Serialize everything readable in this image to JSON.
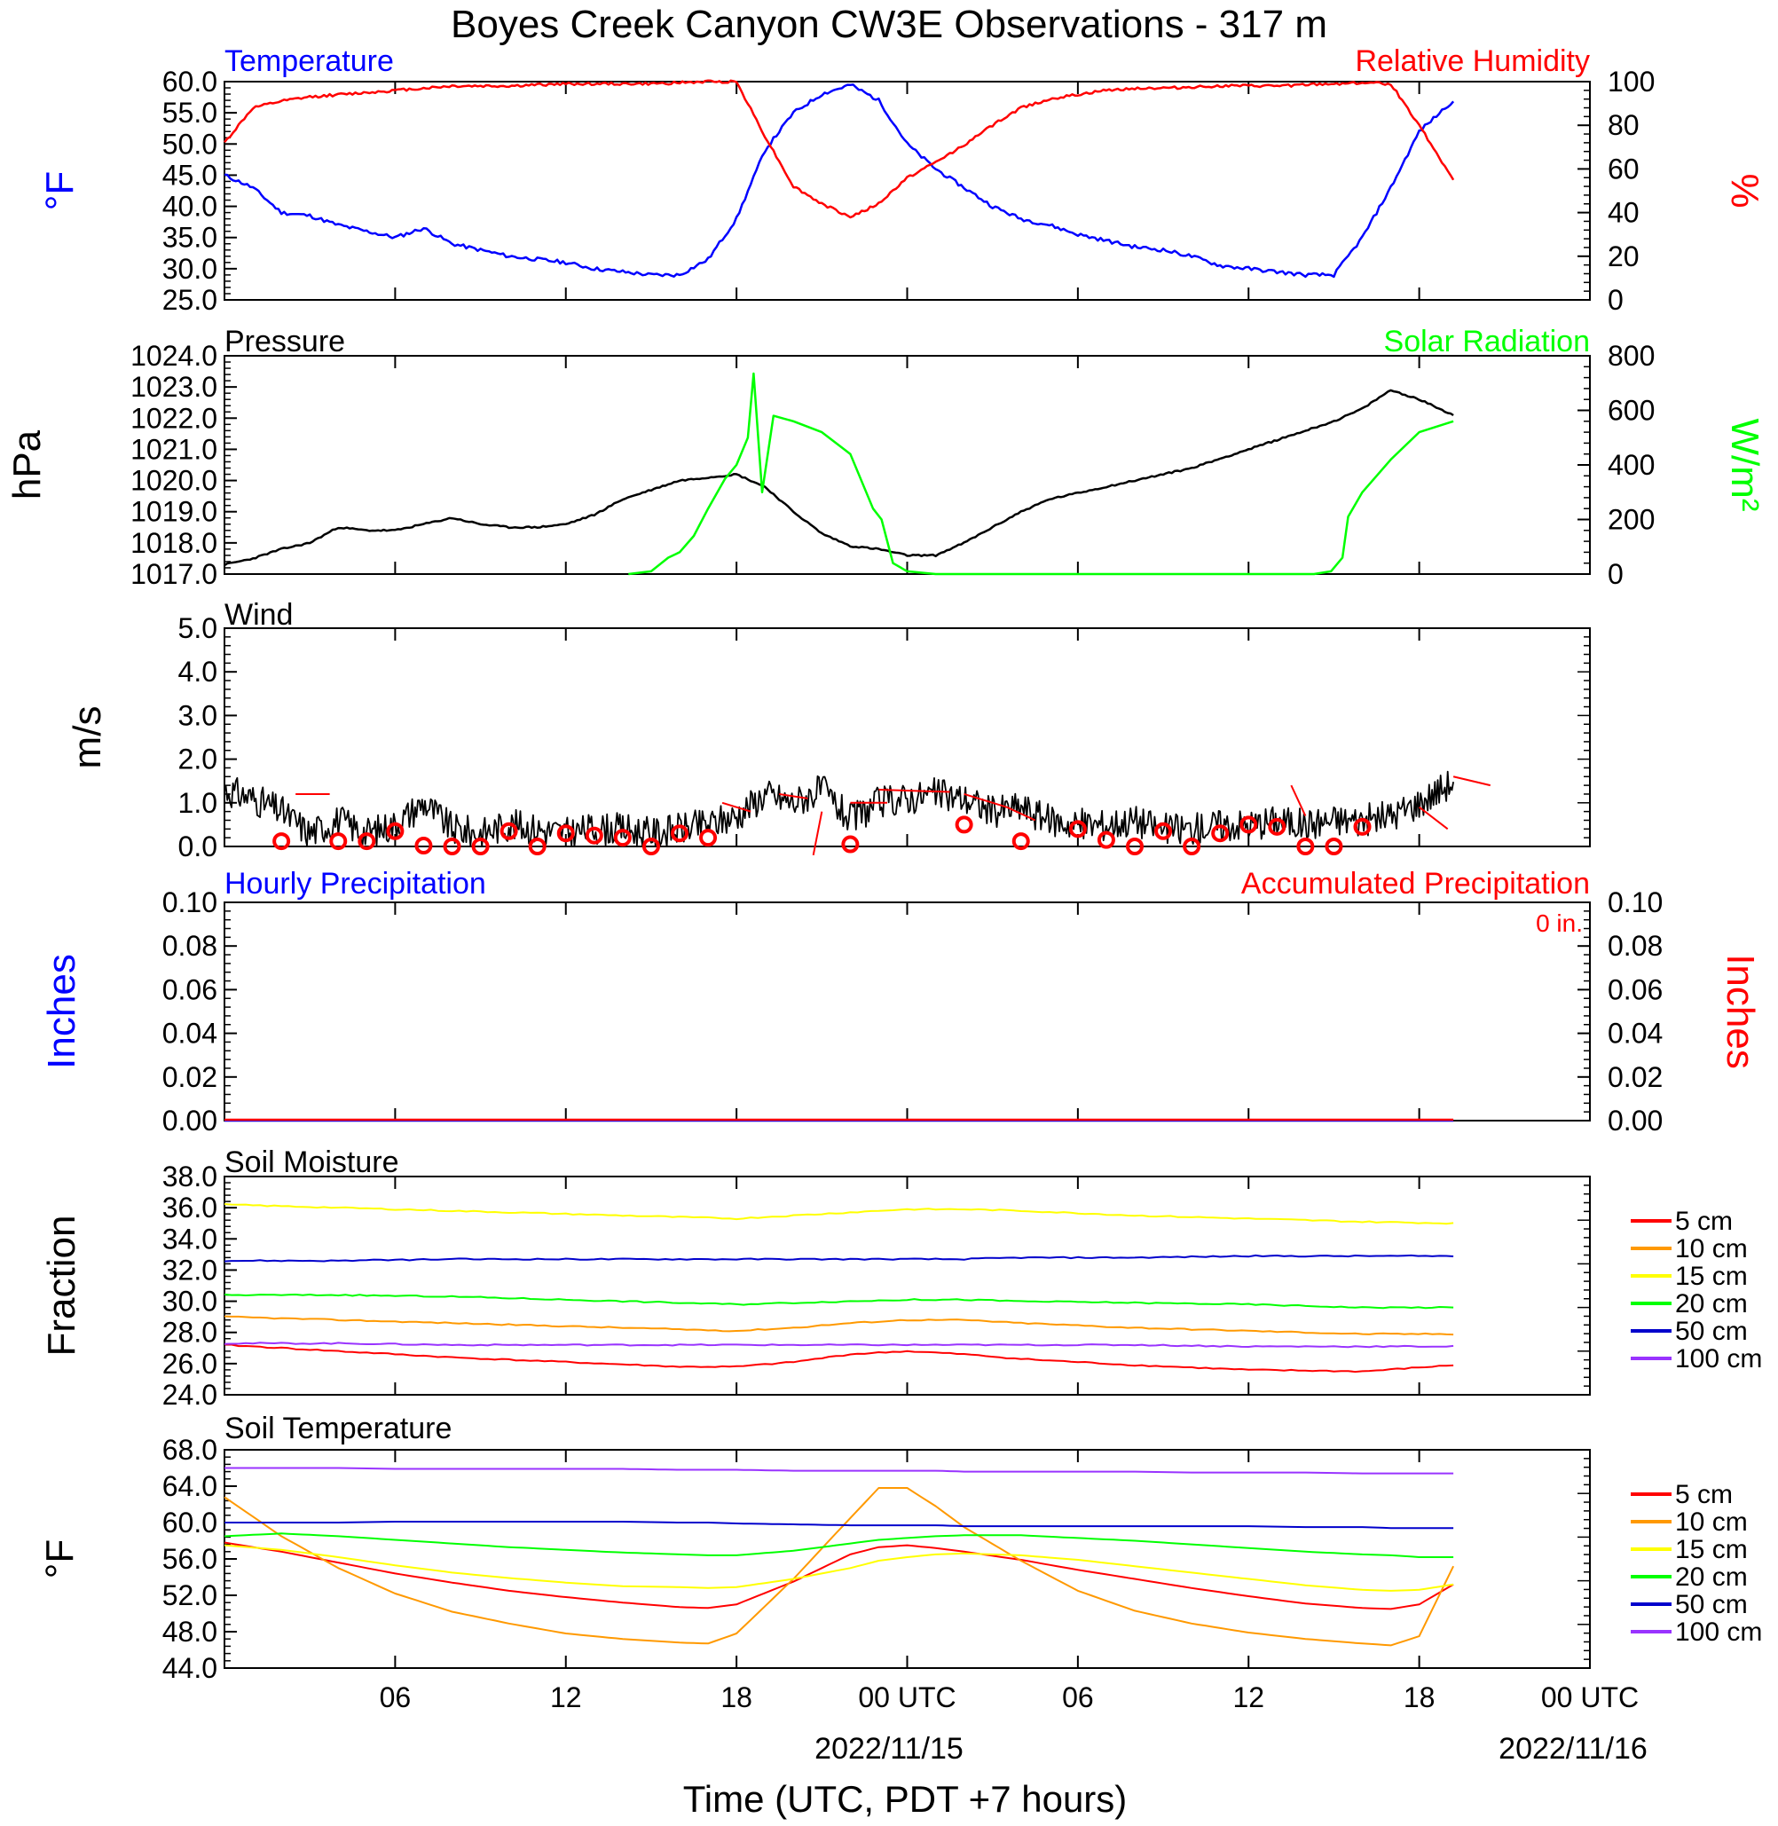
{
  "title": "Boyes Creek Canyon CW3E Observations - 317 m",
  "x_axis": {
    "label": "Time (UTC, PDT +7 hours)",
    "tick_labels": [
      "06",
      "12",
      "18",
      "00 UTC",
      "06",
      "12",
      "18",
      "00 UTC"
    ],
    "date_labels": [
      "2022/11/15",
      "2022/11/16"
    ],
    "range_hours": [
      0,
      48
    ],
    "data_end_hours": 43.2
  },
  "colors": {
    "blue": "#0000ff",
    "red": "#ff0000",
    "green": "#00ff00",
    "black": "#000000",
    "orange": "#ff9900",
    "yellow": "#ffff00",
    "purple": "#9933ff",
    "darkblue": "#0000cc"
  },
  "panels": {
    "temp": {
      "left_title": "Temperature",
      "right_title": "Relative Humidity",
      "left_unit": "°F",
      "right_unit": "%"
    },
    "pres": {
      "left_title": "Pressure",
      "right_title": "Solar Radiation",
      "left_unit": "hPa",
      "right_unit": "W/m²"
    },
    "wind": {
      "left_title": "Wind",
      "left_unit": "m/s"
    },
    "precip": {
      "left_title": "Hourly Precipitation",
      "right_title": "Accumulated Precipitation",
      "left_unit": "Inches",
      "right_unit": "Inches",
      "accum_note": "0 in."
    },
    "soilm": {
      "left_title": "Soil Moisture",
      "left_unit": "Fraction"
    },
    "soilt": {
      "left_title": "Soil Temperature",
      "left_unit": "°F"
    }
  },
  "legend_depths": [
    "5 cm",
    "10 cm",
    "15 cm",
    "20 cm",
    "50 cm",
    "100 cm"
  ],
  "chart_data": [
    {
      "type": "line",
      "title": "Temperature / Relative Humidity",
      "x_hours": [
        0,
        1,
        2,
        3,
        4,
        5,
        6,
        7,
        8,
        9,
        10,
        11,
        12,
        13,
        14,
        15,
        16,
        17,
        18,
        19,
        20,
        21,
        22,
        23,
        24,
        25,
        26,
        27,
        28,
        29,
        30,
        31,
        32,
        33,
        34,
        35,
        36,
        37,
        38,
        39,
        40,
        41,
        42,
        43.2
      ],
      "ylim_left": [
        25,
        60
      ],
      "ylim_right": [
        0,
        100
      ],
      "left_ticks": [
        "25.0",
        "30.0",
        "35.0",
        "40.0",
        "45.0",
        "50.0",
        "55.0",
        "60.0"
      ],
      "right_ticks": [
        "0",
        "20",
        "40",
        "60",
        "80",
        "100"
      ],
      "series": [
        {
          "name": "Temperature",
          "axis": "left",
          "color": "#0000ff",
          "values": [
            45,
            43,
            39,
            38.5,
            37,
            36,
            35,
            36.5,
            34,
            33,
            32,
            31.5,
            31,
            30,
            29.5,
            29,
            29,
            31.5,
            38,
            49,
            55,
            58,
            59.5,
            57,
            50,
            46,
            43,
            40,
            38,
            37,
            35.5,
            34.5,
            33.5,
            33,
            32,
            30.5,
            30,
            29.5,
            29,
            29,
            35,
            43,
            52,
            57
          ]
        },
        {
          "name": "Relative Humidity",
          "axis": "right",
          "color": "#ff0000",
          "values": [
            72,
            88,
            91,
            93,
            94,
            95,
            96,
            97,
            98,
            98,
            98,
            98.5,
            99,
            99,
            99,
            99,
            99.5,
            100,
            100,
            75,
            52,
            44,
            38,
            44,
            56,
            63,
            71,
            80,
            88,
            92,
            94,
            96,
            97,
            97,
            97.5,
            98,
            98,
            98,
            98.5,
            99,
            99.5,
            99,
            80,
            55
          ]
        }
      ]
    },
    {
      "type": "line",
      "title": "Pressure / Solar Radiation",
      "ylim_left": [
        1017,
        1024
      ],
      "ylim_right": [
        0,
        800
      ],
      "left_ticks": [
        "1017.0",
        "1018.0",
        "1019.0",
        "1020.0",
        "1021.0",
        "1022.0",
        "1023.0",
        "1024.0"
      ],
      "right_ticks": [
        "0",
        "200",
        "400",
        "600",
        "800"
      ],
      "series": [
        {
          "name": "Pressure",
          "axis": "left",
          "color": "#000000",
          "x_hours": [
            0,
            1,
            2,
            3,
            4,
            5,
            6,
            7,
            8,
            9,
            10,
            11,
            12,
            13,
            14,
            15,
            16,
            17,
            18,
            19,
            20,
            21,
            22,
            23,
            24,
            25,
            26,
            27,
            28,
            29,
            30,
            31,
            32,
            33,
            34,
            35,
            36,
            37,
            38,
            39,
            40,
            41,
            42,
            43.2
          ],
          "values": [
            1017.3,
            1017.5,
            1017.8,
            1018.0,
            1018.5,
            1018.4,
            1018.4,
            1018.6,
            1018.8,
            1018.6,
            1018.5,
            1018.5,
            1018.6,
            1018.9,
            1019.4,
            1019.7,
            1020.0,
            1020.1,
            1020.2,
            1019.8,
            1019.0,
            1018.3,
            1017.9,
            1017.8,
            1017.6,
            1017.6,
            1018.0,
            1018.5,
            1019.0,
            1019.4,
            1019.6,
            1019.8,
            1020.0,
            1020.2,
            1020.4,
            1020.7,
            1021.0,
            1021.3,
            1021.6,
            1021.9,
            1022.3,
            1022.9,
            1022.6,
            1022.1
          ]
        },
        {
          "name": "Solar Radiation",
          "axis": "right",
          "color": "#00ff00",
          "x_hours": [
            14.2,
            15,
            15.6,
            16,
            16.5,
            17,
            17.6,
            18,
            18.4,
            18.6,
            18.9,
            19.3,
            20,
            21,
            22,
            22.8,
            23.1,
            23.5,
            24,
            25,
            33,
            38.3,
            38.9,
            39.3,
            39.5,
            40,
            41,
            42,
            43.2
          ],
          "values": [
            0,
            10,
            60,
            80,
            140,
            240,
            350,
            400,
            500,
            735,
            300,
            580,
            560,
            520,
            440,
            240,
            200,
            40,
            10,
            0,
            0,
            0,
            10,
            60,
            210,
            300,
            420,
            520,
            560
          ]
        }
      ]
    },
    {
      "type": "line",
      "title": "Wind",
      "x_hours": [
        0,
        1,
        2,
        3,
        4,
        5,
        6,
        7,
        8,
        9,
        10,
        11,
        12,
        13,
        14,
        15,
        16,
        17,
        18,
        19,
        20,
        21,
        22,
        23,
        24,
        25,
        26,
        27,
        28,
        29,
        30,
        31,
        32,
        33,
        34,
        35,
        36,
        37,
        38,
        39,
        40,
        41,
        42,
        43.2
      ],
      "ylim": [
        0,
        5
      ],
      "y_ticks": [
        "0.0",
        "1.0",
        "2.0",
        "3.0",
        "4.0",
        "5.0"
      ],
      "series": [
        {
          "name": "Wind",
          "color": "#000000",
          "values": [
            1.3,
            1.1,
            0.8,
            0.3,
            0.6,
            0.3,
            0.5,
            1.0,
            0.4,
            0.3,
            0.5,
            0.4,
            0.3,
            0.4,
            0.4,
            0.3,
            0.4,
            0.5,
            0.7,
            1.2,
            1.0,
            1.3,
            0.6,
            1.0,
            1.1,
            1.2,
            1.1,
            0.8,
            0.9,
            0.6,
            0.5,
            0.5,
            0.6,
            0.4,
            0.4,
            0.5,
            0.5,
            0.6,
            0.5,
            0.6,
            0.6,
            0.7,
            1.0,
            1.5
          ]
        }
      ],
      "hourly_markers_x": [
        2,
        4,
        5,
        6,
        7,
        8,
        9,
        10,
        11,
        12,
        13,
        14,
        15,
        16,
        17,
        22,
        26,
        28,
        30,
        31,
        32,
        33,
        34,
        35,
        36,
        37,
        38,
        39,
        40
      ],
      "hourly_markers_speed": [
        0.12,
        0.12,
        0.12,
        0.35,
        0.02,
        0.0,
        0.0,
        0.35,
        0.0,
        0.3,
        0.25,
        0.2,
        0.0,
        0.3,
        0.2,
        0.05,
        0.5,
        0.12,
        0.4,
        0.15,
        0.0,
        0.35,
        0.0,
        0.3,
        0.5,
        0.45,
        0.0,
        0.0,
        0.45
      ],
      "barbs": [
        {
          "x": 2.5,
          "y": 1.2,
          "dx": 1.2,
          "dy": 0.0
        },
        {
          "x": 17.5,
          "y": 1.0,
          "dx": 1.0,
          "dy": -0.2
        },
        {
          "x": 19.5,
          "y": 1.2,
          "dx": 1.0,
          "dy": -0.1
        },
        {
          "x": 21.0,
          "y": 0.8,
          "dx": -0.3,
          "dy": -1.0
        },
        {
          "x": 22.0,
          "y": 1.0,
          "dx": 1.3,
          "dy": 0.0
        },
        {
          "x": 23.0,
          "y": 1.3,
          "dx": 2.5,
          "dy": -0.05
        },
        {
          "x": 26.0,
          "y": 1.2,
          "dx": 1.5,
          "dy": -0.3
        },
        {
          "x": 27.5,
          "y": 0.9,
          "dx": 1.0,
          "dy": -0.3
        },
        {
          "x": 37.5,
          "y": 1.4,
          "dx": 0.5,
          "dy": -0.7
        },
        {
          "x": 42.0,
          "y": 0.9,
          "dx": 1.0,
          "dy": -0.5
        },
        {
          "x": 43.2,
          "y": 1.6,
          "dx": 1.3,
          "dy": -0.2
        }
      ]
    },
    {
      "type": "line",
      "title": "Hourly / Accumulated Precipitation",
      "x_hours": [
        0,
        43.2
      ],
      "ylim_left": [
        0,
        0.1
      ],
      "ylim_right": [
        0,
        0.1
      ],
      "left_ticks": [
        "0.00",
        "0.02",
        "0.04",
        "0.06",
        "0.08",
        "0.10"
      ],
      "right_ticks": [
        "0.00",
        "0.02",
        "0.04",
        "0.06",
        "0.08",
        "0.10"
      ],
      "series": [
        {
          "name": "Hourly Precipitation",
          "color": "#0000ff",
          "values": [
            0,
            0
          ]
        },
        {
          "name": "Accumulated Precipitation",
          "color": "#ff0000",
          "values": [
            0,
            0
          ]
        }
      ]
    },
    {
      "type": "line",
      "title": "Soil Moisture",
      "x_hours": [
        0,
        4,
        8,
        12,
        16,
        18,
        20,
        22,
        24,
        26,
        28,
        32,
        36,
        40,
        43.2
      ],
      "ylim": [
        24,
        38
      ],
      "y_ticks": [
        "24.0",
        "26.0",
        "28.0",
        "30.0",
        "32.0",
        "34.0",
        "36.0",
        "38.0"
      ],
      "series": [
        {
          "name": "5 cm",
          "color": "#ff0000",
          "values": [
            27.2,
            26.8,
            26.4,
            26.1,
            25.8,
            25.8,
            26.1,
            26.6,
            26.8,
            26.6,
            26.3,
            25.9,
            25.6,
            25.5,
            25.9
          ]
        },
        {
          "name": "10 cm",
          "color": "#ff9900",
          "values": [
            29.0,
            28.8,
            28.6,
            28.4,
            28.2,
            28.1,
            28.3,
            28.6,
            28.8,
            28.8,
            28.6,
            28.3,
            28.1,
            27.9,
            27.9
          ]
        },
        {
          "name": "15 cm",
          "color": "#ffff00",
          "values": [
            36.2,
            36.0,
            35.8,
            35.6,
            35.4,
            35.3,
            35.5,
            35.7,
            35.9,
            35.9,
            35.8,
            35.5,
            35.3,
            35.1,
            35.0
          ]
        },
        {
          "name": "20 cm",
          "color": "#00ff00",
          "values": [
            30.4,
            30.4,
            30.3,
            30.1,
            29.9,
            29.8,
            29.9,
            30.0,
            30.1,
            30.1,
            30.0,
            29.9,
            29.8,
            29.6,
            29.6
          ]
        },
        {
          "name": "50 cm",
          "color": "#0000cc",
          "values": [
            32.6,
            32.6,
            32.7,
            32.7,
            32.7,
            32.7,
            32.7,
            32.7,
            32.7,
            32.7,
            32.8,
            32.8,
            32.9,
            32.9,
            32.9
          ]
        },
        {
          "name": "100 cm",
          "color": "#9933ff",
          "values": [
            27.3,
            27.3,
            27.2,
            27.2,
            27.2,
            27.2,
            27.2,
            27.2,
            27.2,
            27.2,
            27.2,
            27.2,
            27.1,
            27.1,
            27.1
          ]
        }
      ]
    },
    {
      "type": "line",
      "title": "Soil Temperature",
      "x_hours": [
        0,
        2,
        4,
        6,
        8,
        10,
        12,
        14,
        16,
        17,
        18,
        20,
        22,
        23,
        24,
        25,
        26,
        28,
        30,
        32,
        34,
        36,
        38,
        40,
        41,
        42,
        43.2
      ],
      "ylim": [
        44,
        68
      ],
      "y_ticks": [
        "44.0",
        "48.0",
        "52.0",
        "56.0",
        "60.0",
        "64.0",
        "68.0"
      ],
      "series": [
        {
          "name": "5 cm",
          "color": "#ff0000",
          "values": [
            57.8,
            56.8,
            55.6,
            54.4,
            53.4,
            52.5,
            51.8,
            51.2,
            50.7,
            50.6,
            51.0,
            53.5,
            56.5,
            57.3,
            57.5,
            57.2,
            56.8,
            55.9,
            54.8,
            53.8,
            52.8,
            51.9,
            51.1,
            50.6,
            50.5,
            51.0,
            53.2
          ]
        },
        {
          "name": "10 cm",
          "color": "#ff9900",
          "values": [
            62.8,
            58.5,
            55.0,
            52.2,
            50.2,
            48.9,
            47.8,
            47.2,
            46.8,
            46.7,
            47.8,
            53.8,
            60.5,
            63.8,
            63.8,
            61.8,
            59.5,
            55.8,
            52.5,
            50.3,
            48.9,
            47.9,
            47.2,
            46.7,
            46.5,
            47.5,
            55.2
          ]
        },
        {
          "name": "15 cm",
          "color": "#ffff00",
          "values": [
            57.5,
            57.0,
            56.2,
            55.3,
            54.5,
            53.9,
            53.4,
            53.0,
            52.9,
            52.8,
            52.9,
            53.8,
            55.0,
            55.8,
            56.2,
            56.5,
            56.6,
            56.4,
            55.9,
            55.2,
            54.5,
            53.8,
            53.1,
            52.6,
            52.5,
            52.6,
            53.2
          ]
        },
        {
          "name": "20 cm",
          "color": "#00ff00",
          "values": [
            58.5,
            58.8,
            58.5,
            58.1,
            57.7,
            57.3,
            57.0,
            56.7,
            56.5,
            56.4,
            56.4,
            56.9,
            57.7,
            58.1,
            58.3,
            58.5,
            58.6,
            58.6,
            58.3,
            58.0,
            57.6,
            57.2,
            56.8,
            56.5,
            56.4,
            56.2,
            56.2
          ]
        },
        {
          "name": "50 cm",
          "color": "#0000cc",
          "values": [
            60.0,
            60.0,
            60.0,
            60.1,
            60.1,
            60.1,
            60.1,
            60.1,
            60.0,
            60.0,
            59.9,
            59.8,
            59.7,
            59.7,
            59.7,
            59.7,
            59.6,
            59.6,
            59.6,
            59.6,
            59.6,
            59.6,
            59.5,
            59.5,
            59.4,
            59.4,
            59.4
          ]
        },
        {
          "name": "100 cm",
          "color": "#9933ff",
          "values": [
            66.0,
            66.0,
            66.0,
            65.9,
            65.9,
            65.9,
            65.9,
            65.9,
            65.8,
            65.8,
            65.8,
            65.7,
            65.7,
            65.7,
            65.7,
            65.7,
            65.6,
            65.6,
            65.6,
            65.6,
            65.5,
            65.5,
            65.5,
            65.4,
            65.4,
            65.4,
            65.4
          ]
        }
      ]
    }
  ]
}
